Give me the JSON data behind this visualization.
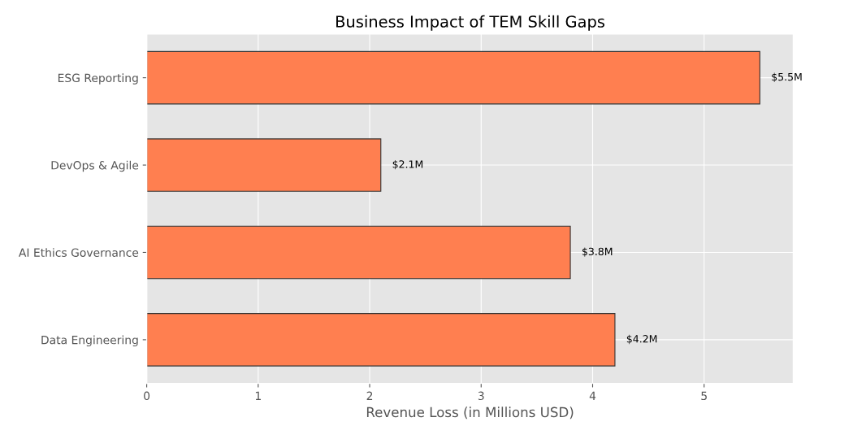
{
  "chart_data": {
    "type": "bar",
    "orientation": "horizontal",
    "title": "Business Impact of TEM Skill Gaps",
    "xlabel": "Revenue Loss (in Millions USD)",
    "categories": [
      "ESG Reporting",
      "DevOps & Agile",
      "AI Ethics Governance",
      "Data Engineering"
    ],
    "values": [
      5.5,
      2.1,
      3.8,
      4.2
    ],
    "value_labels": [
      "$5.5M",
      "$2.1M",
      "$3.8M",
      "$4.2M"
    ],
    "color": "#ff7f50",
    "xlim": [
      0,
      5.8
    ],
    "xticks": [
      0,
      1,
      2,
      3,
      4,
      5
    ],
    "grid": true
  }
}
